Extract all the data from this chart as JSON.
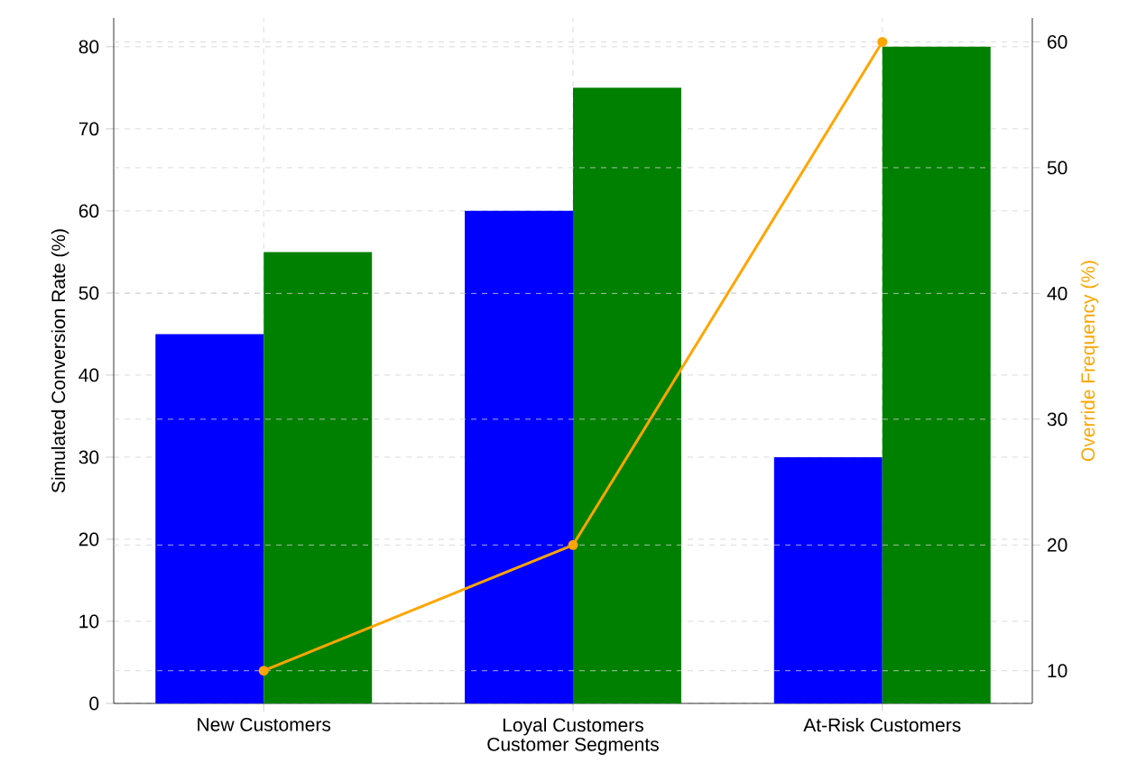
{
  "chart_data": {
    "type": "bar",
    "xlabel": "Customer Segments",
    "ylabel": "Simulated Conversion Rate (%)",
    "y2label": "Override Frequency (%)",
    "categories": [
      "New Customers",
      "Loyal Customers",
      "At-Risk Customers"
    ],
    "series": [
      {
        "color": "#0000ff",
        "values": [
          45,
          60,
          30
        ]
      },
      {
        "color": "#008000",
        "values": [
          55,
          75,
          80
        ]
      },
      {
        "type": "line",
        "axis": "y2",
        "color": "#ffa500",
        "marker": "circle",
        "values": [
          10,
          20,
          60
        ]
      }
    ],
    "ylim": [
      0,
      83.5
    ],
    "yticks": [
      0,
      10,
      20,
      30,
      40,
      50,
      60,
      70,
      80
    ],
    "y2lim": [
      7.4,
      61.9
    ],
    "y2ticks": [
      10,
      20,
      30,
      40,
      50,
      60
    ],
    "grid": true
  }
}
